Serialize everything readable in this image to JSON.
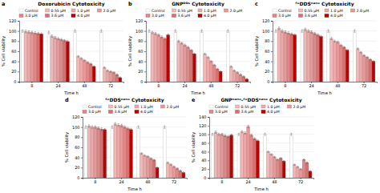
{
  "chart_data": [
    {
      "type": "bar",
      "title": "Doxorubicin Cytotoxicity",
      "xlabel": "Time h",
      "ylabel": "% Cell viability",
      "annotations": [
        "a"
      ],
      "categories": [
        "8",
        "24",
        "48",
        "72"
      ],
      "series": [
        {
          "name": "Control",
          "color": "#ffffff",
          "values": [
            100,
            97,
            100,
            100
          ],
          "errors": [
            2.5,
            2.425,
            2.5,
            2.5
          ]
        },
        {
          "name": "0.55 μM",
          "color": "#f2b8b8",
          "values": [
            99,
            90,
            50,
            28
          ],
          "errors": [
            2.475,
            2.25,
            1.5,
            1.5
          ]
        },
        {
          "name": "1.0 μM",
          "color": "#eda8a8",
          "values": [
            98,
            87,
            46,
            22
          ],
          "errors": [
            2.45,
            2.175,
            1.5,
            1.5
          ]
        },
        {
          "name": "2.0 μM",
          "color": "#e89898",
          "values": [
            97,
            85,
            42,
            20
          ],
          "errors": [
            2.425,
            2.125,
            1.5,
            1.5
          ]
        },
        {
          "name": "3.0 μM",
          "color": "#e08888",
          "values": [
            96,
            83,
            38,
            18
          ],
          "errors": [
            2.4,
            2.075,
            1.5,
            1.5
          ]
        },
        {
          "name": "3.6 μM",
          "color": "#d87070",
          "values": [
            95,
            81,
            35,
            14
          ],
          "errors": [
            2.375,
            2.025,
            1.5,
            1.5
          ]
        },
        {
          "name": "4.0 μM",
          "color": "#bb0000",
          "values": [
            94,
            79,
            30,
            8
          ],
          "errors": [
            2.35,
            1.975,
            1.5,
            1.5
          ]
        }
      ],
      "ylim": [
        0,
        120
      ],
      "yticks": [
        0,
        20,
        40,
        60,
        80,
        100,
        120
      ],
      "grid": true,
      "legend": "top"
    },
    {
      "type": "bar",
      "title": "GNPᴰᴰˢ Cytotoxicity",
      "xlabel": "Time h",
      "ylabel": "% Cell viability",
      "annotations": [
        "b"
      ],
      "categories": [
        "8",
        "24",
        "48",
        "72"
      ],
      "series": [
        {
          "name": "Control",
          "color": "#ffffff",
          "values": [
            100,
            100,
            100,
            100
          ],
          "errors": [
            2.5,
            2.5,
            2.5,
            2.5
          ]
        },
        {
          "name": "0.55 μM",
          "color": "#f2b8b8",
          "values": [
            97,
            80,
            55,
            30
          ],
          "errors": [
            2.425,
            2.0,
            1.5,
            1.5
          ]
        },
        {
          "name": "1.0 μM",
          "color": "#eda8a8",
          "values": [
            95,
            76,
            48,
            22
          ],
          "errors": [
            2.375,
            1.9,
            1.5,
            1.5
          ]
        },
        {
          "name": "2.0 μM",
          "color": "#e89898",
          "values": [
            92,
            72,
            40,
            18
          ],
          "errors": [
            2.3,
            1.8,
            1.5,
            1.5
          ]
        },
        {
          "name": "3.0 μM",
          "color": "#e08888",
          "values": [
            88,
            68,
            33,
            14
          ],
          "errors": [
            2.2,
            1.7,
            1.5,
            1.5
          ]
        },
        {
          "name": "3.6 μM",
          "color": "#d87070",
          "values": [
            85,
            62,
            25,
            10
          ],
          "errors": [
            2.125,
            1.55,
            1.5,
            1.5
          ]
        },
        {
          "name": "4.0 μM",
          "color": "#bb0000",
          "values": [
            92,
            55,
            20,
            5
          ],
          "errors": [
            2.3,
            1.5,
            1.5,
            1.5
          ]
        }
      ],
      "ylim": [
        0,
        120
      ],
      "yticks": [
        0,
        20,
        40,
        60,
        80,
        100,
        120
      ],
      "grid": true,
      "legend": "top"
    },
    {
      "type": "bar",
      "title": "ᶠᵉDDSⁿᵃⁿᵒ Cytotoxicity",
      "xlabel": "Time h",
      "ylabel": "% Cell viability",
      "annotations": [
        "c"
      ],
      "categories": [
        "8",
        "24",
        "48",
        "72"
      ],
      "series": [
        {
          "name": "Control",
          "color": "#ffffff",
          "values": [
            100,
            100,
            100,
            100
          ],
          "errors": [
            2.5,
            2.5,
            2.5,
            2.5
          ]
        },
        {
          "name": "0.55 μM",
          "color": "#f2b8b8",
          "values": [
            105,
            103,
            85,
            65
          ],
          "errors": [
            2.625,
            2.575,
            2.125,
            1.625
          ]
        },
        {
          "name": "1.0 μM",
          "color": "#eda8a8",
          "values": [
            100,
            100,
            80,
            58
          ],
          "errors": [
            2.5,
            2.5,
            2.0,
            1.5
          ]
        },
        {
          "name": "2.0 μM",
          "color": "#e89898",
          "values": [
            98,
            98,
            78,
            52
          ],
          "errors": [
            2.45,
            2.45,
            1.95,
            1.5
          ]
        },
        {
          "name": "3.0 μM",
          "color": "#e08888",
          "values": [
            96,
            95,
            72,
            48
          ],
          "errors": [
            2.4,
            2.375,
            1.8,
            1.5
          ]
        },
        {
          "name": "3.6 μM",
          "color": "#d87070",
          "values": [
            94,
            92,
            68,
            44
          ],
          "errors": [
            2.35,
            2.3,
            1.7,
            1.5
          ]
        },
        {
          "name": "4.0 μM",
          "color": "#bb0000",
          "values": [
            92,
            89,
            62,
            40
          ],
          "errors": [
            2.3,
            2.225,
            1.55,
            1.5
          ]
        }
      ],
      "ylim": [
        0,
        120
      ],
      "yticks": [
        0,
        20,
        40,
        60,
        80,
        100,
        120
      ],
      "grid": true,
      "legend": "top"
    },
    {
      "type": "bar",
      "title": "ᶠᵉDDSⁿᵃⁿᵒ Cytotoxicity",
      "xlabel": "Time h",
      "ylabel": "% Cell viability",
      "annotations": [
        "d"
      ],
      "categories": [
        "8",
        "24",
        "48",
        "72"
      ],
      "series": [
        {
          "name": "Control",
          "color": "#ffffff",
          "values": [
            100,
            100,
            100,
            100
          ],
          "errors": [
            2.5,
            2.5,
            2.5,
            2.5
          ]
        },
        {
          "name": "0.55 μM",
          "color": "#f2b8b8",
          "values": [
            102,
            106,
            48,
            30
          ],
          "errors": [
            2.55,
            2.65,
            1.5,
            1.5
          ]
        },
        {
          "name": "1.0 μM",
          "color": "#eda8a8",
          "values": [
            100,
            104,
            44,
            26
          ],
          "errors": [
            2.5,
            2.6,
            1.5,
            1.5
          ]
        },
        {
          "name": "2.0 μM",
          "color": "#e89898",
          "values": [
            100,
            103,
            42,
            22
          ],
          "errors": [
            2.5,
            2.575,
            1.5,
            1.5
          ]
        },
        {
          "name": "3.0 μM",
          "color": "#e08888",
          "values": [
            98,
            100,
            38,
            18
          ],
          "errors": [
            2.45,
            2.5,
            1.5,
            1.5
          ]
        },
        {
          "name": "3.6 μM",
          "color": "#d87070",
          "values": [
            96,
            97,
            35,
            14
          ],
          "errors": [
            2.4,
            2.425,
            1.5,
            1.5
          ]
        },
        {
          "name": "4.0 μM",
          "color": "#bb0000",
          "values": [
            95,
            95,
            20,
            10
          ],
          "errors": [
            2.375,
            2.375,
            1.5,
            1.5
          ]
        }
      ],
      "ylim": [
        0,
        120
      ],
      "yticks": [
        0,
        20,
        40,
        60,
        80,
        100,
        120
      ],
      "grid": true,
      "legend": "top"
    },
    {
      "type": "bar",
      "title": "GNPⁿᵃⁿᵒ-ᶠᵉDDSⁿᵃⁿᵒ Cytotoxicity",
      "xlabel": "Time h",
      "ylabel": "% Cell viability",
      "annotations": [
        "e"
      ],
      "categories": [
        "8",
        "24",
        "48",
        "72"
      ],
      "series": [
        {
          "name": "Control",
          "color": "#ffffff",
          "values": [
            100,
            100,
            100,
            100
          ],
          "errors": [
            2.5,
            2.5,
            2.5,
            2.5
          ]
        },
        {
          "name": "0.55 μM",
          "color": "#f2b8b8",
          "values": [
            105,
            106,
            60,
            30
          ],
          "errors": [
            2.625,
            2.65,
            1.5,
            1.5
          ]
        },
        {
          "name": "1.0 μM",
          "color": "#eda8a8",
          "values": [
            100,
            103,
            54,
            25
          ],
          "errors": [
            2.5,
            2.575,
            1.5,
            1.5
          ]
        },
        {
          "name": "2.0 μM",
          "color": "#e89898",
          "values": [
            100,
            118,
            48,
            20
          ],
          "errors": [
            2.5,
            2.95,
            1.5,
            1.5
          ]
        },
        {
          "name": "3.0 μM",
          "color": "#e08888",
          "values": [
            97,
            98,
            42,
            42
          ],
          "errors": [
            2.425,
            2.45,
            1.5,
            1.5
          ]
        },
        {
          "name": "3.6 μM",
          "color": "#d87070",
          "values": [
            95,
            90,
            45,
            35
          ],
          "errors": [
            2.375,
            2.25,
            1.5,
            1.5
          ]
        },
        {
          "name": "4.0 μM",
          "color": "#bb0000",
          "values": [
            98,
            85,
            38,
            15
          ],
          "errors": [
            2.45,
            2.125,
            1.5,
            1.5
          ]
        }
      ],
      "ylim": [
        0,
        140
      ],
      "yticks": [
        0,
        20,
        40,
        60,
        80,
        100,
        120,
        140
      ],
      "grid": true,
      "legend": "top"
    }
  ]
}
